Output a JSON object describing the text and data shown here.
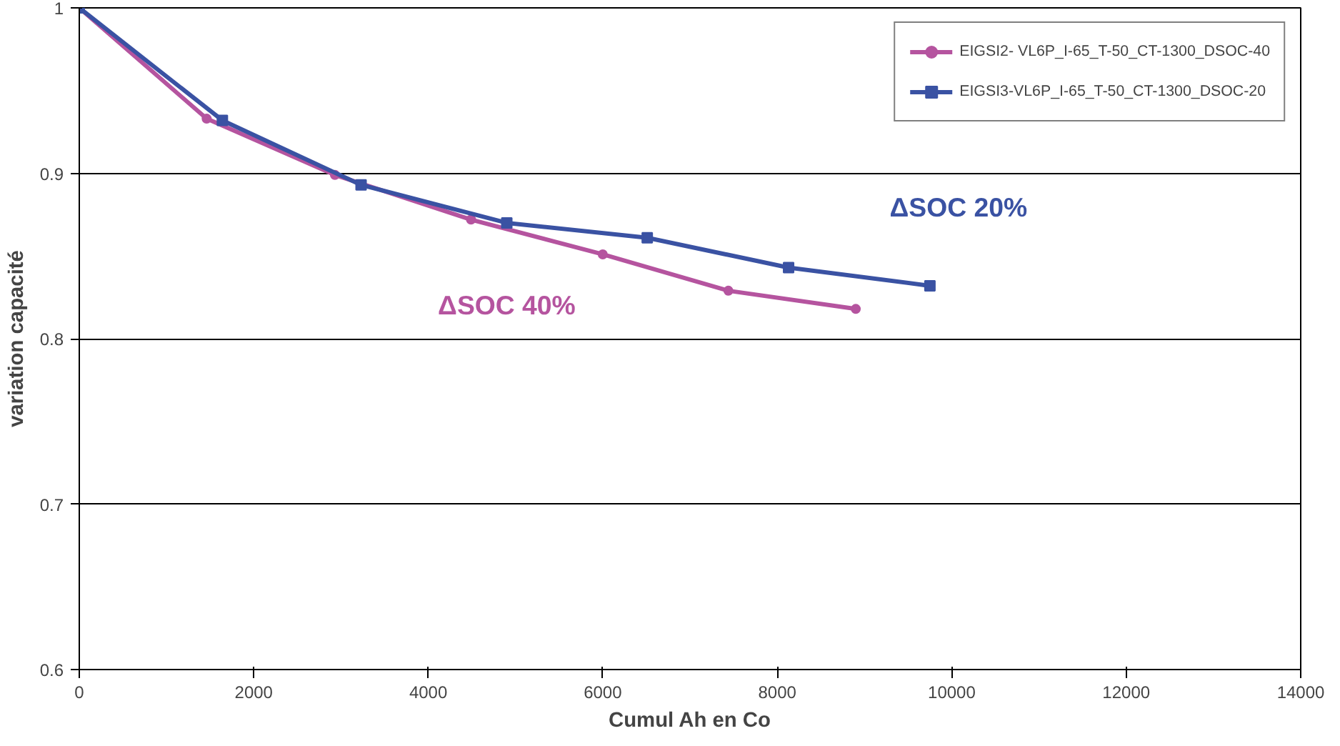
{
  "chart_data": {
    "type": "line",
    "xlabel": "Cumul Ah en Co",
    "ylabel": "variation capacité",
    "xlim": [
      0,
      14000
    ],
    "ylim": [
      0.6,
      1
    ],
    "xticks": [
      0,
      2000,
      4000,
      6000,
      8000,
      10000,
      12000,
      14000
    ],
    "yticks": [
      0.6,
      0.7,
      0.8,
      0.9,
      1
    ],
    "grid": "y",
    "legend": "top right",
    "line_style": "solid",
    "series": [
      {
        "name": "EIGSI2- VL6P_I-65_T-50_CT-1300_DSOC-40",
        "color": "#b5549f",
        "marker": "circle",
        "x": [
          0,
          1460,
          2930,
          4490,
          6000,
          7440,
          8900
        ],
        "values": [
          1,
          0.933,
          0.899,
          0.872,
          0.851,
          0.829,
          0.818
        ]
      },
      {
        "name": "EIGSI3-VL6P_I-65_T-50_CT-1300_DSOC-20",
        "color": "#3a52a3",
        "marker": "square",
        "x": [
          0,
          1640,
          3230,
          4900,
          6510,
          8130,
          9750
        ],
        "values": [
          1,
          0.932,
          0.893,
          0.87,
          0.861,
          0.843,
          0.832
        ]
      }
    ],
    "annotations": [
      "ΔSOC 40%",
      "ΔSOC 20%"
    ]
  }
}
